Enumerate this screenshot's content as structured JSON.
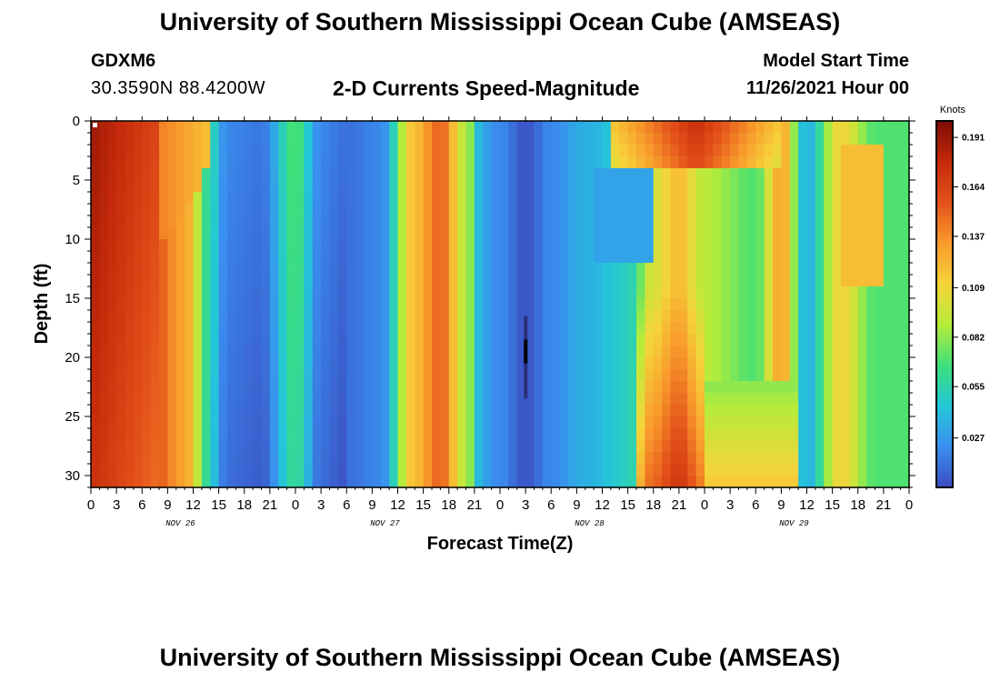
{
  "header": {
    "title": "University of Southern Mississippi Ocean Cube (AMSEAS)",
    "station_id": "GDXM6",
    "station_coords": "30.3590N  88.4200W",
    "product": "2-D Currents Speed-Magnitude",
    "start_label": "Model Start Time",
    "start_value": "11/26/2021 Hour 00"
  },
  "footer": {
    "title": "University of Southern Mississippi Ocean Cube (AMSEAS)"
  },
  "chart_data": {
    "type": "heatmap",
    "title": "2-D Currents Speed-Magnitude",
    "xlabel": "Forecast Time(Z)",
    "ylabel": "Depth (ft)",
    "x_tick_labels": [
      "0",
      "3",
      "6",
      "9",
      "12",
      "15",
      "18",
      "21",
      "0",
      "3",
      "6",
      "9",
      "12",
      "15",
      "18",
      "21",
      "0",
      "3",
      "6",
      "9",
      "12",
      "15",
      "18",
      "21",
      "0",
      "3",
      "6",
      "9",
      "12",
      "15",
      "18",
      "21",
      "0"
    ],
    "x_hours_range": [
      0,
      96
    ],
    "date_labels": [
      {
        "label": "NOV 26",
        "hour": 10.5
      },
      {
        "label": "NOV 27",
        "hour": 34.5
      },
      {
        "label": "NOV 28",
        "hour": 58.5
      },
      {
        "label": "NOV 29",
        "hour": 82.5
      }
    ],
    "y_ticks": [
      0,
      5,
      10,
      15,
      20,
      25,
      30
    ],
    "ylim": [
      31,
      0
    ],
    "colorbar": {
      "unit": "Knots",
      "range": [
        0,
        0.2
      ],
      "ticks": [
        "0.191",
        "0.164",
        "0.137",
        "0.109",
        "0.082",
        "0.055",
        "0.027"
      ],
      "tick_values": [
        0.191,
        0.164,
        0.137,
        0.109,
        0.082,
        0.055,
        0.027
      ],
      "colors": [
        "#3b4cc0",
        "#3a8ff0",
        "#23c7d8",
        "#3ee07a",
        "#b6ec3a",
        "#f5d43a",
        "#f99a2c",
        "#e4521a",
        "#c42a0a",
        "#7d0b02"
      ]
    },
    "grid": false,
    "speed_profile_knots": [
      {
        "hour": 0,
        "speed": 0.19
      },
      {
        "hour": 6,
        "speed": 0.17
      },
      {
        "hour": 11,
        "speed": 0.13
      },
      {
        "hour": 14,
        "speed": 0.055
      },
      {
        "hour": 16,
        "speed": 0.02
      },
      {
        "hour": 20,
        "speed": 0.015
      },
      {
        "hour": 24,
        "speed": 0.07
      },
      {
        "hour": 27,
        "speed": 0.02
      },
      {
        "hour": 30,
        "speed": 0.012
      },
      {
        "hour": 34,
        "speed": 0.02
      },
      {
        "hour": 38,
        "speed": 0.12
      },
      {
        "hour": 41,
        "speed": 0.15
      },
      {
        "hour": 44,
        "speed": 0.09
      },
      {
        "hour": 46,
        "speed": 0.03
      },
      {
        "hour": 48,
        "speed": 0.02
      },
      {
        "hour": 51,
        "speed": 0.003
      },
      {
        "hour": 54,
        "speed": 0.02
      },
      {
        "hour": 58,
        "speed": 0.035
      },
      {
        "hour": 63,
        "speed": 0.05
      },
      {
        "hour": 66,
        "speed": 0.1
      },
      {
        "hour": 69,
        "speed": 0.12
      },
      {
        "hour": 72,
        "speed": 0.09
      },
      {
        "hour": 78,
        "speed": 0.07
      },
      {
        "hour": 81,
        "speed": 0.13
      },
      {
        "hour": 84,
        "speed": 0.035
      },
      {
        "hour": 88,
        "speed": 0.11
      },
      {
        "hour": 92,
        "speed": 0.07
      },
      {
        "hour": 96,
        "speed": 0.07
      }
    ]
  }
}
